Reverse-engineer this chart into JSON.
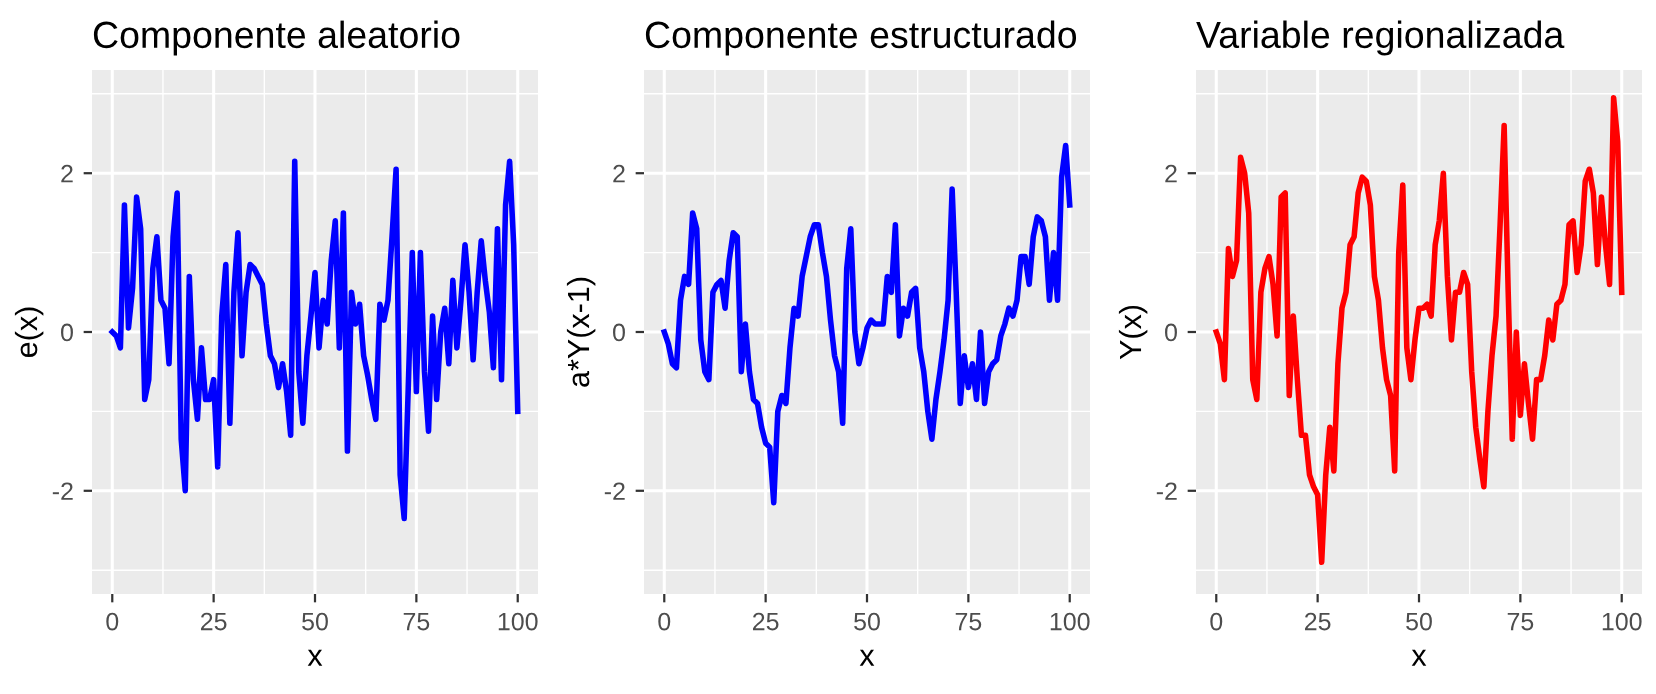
{
  "chart_data": [
    {
      "type": "line",
      "title": "Componente aleatorio",
      "xlabel": "x",
      "ylabel": "e(x)",
      "xlim": [
        -5,
        105
      ],
      "ylim": [
        -3.3,
        3.3
      ],
      "xticks": [
        0,
        25,
        50,
        75,
        100
      ],
      "yticks": [
        -2,
        0,
        2
      ],
      "grid": true,
      "x": [
        0,
        1,
        2,
        3,
        4,
        5,
        6,
        7,
        8,
        9,
        10,
        11,
        12,
        13,
        14,
        15,
        16,
        17,
        18,
        19,
        20,
        21,
        22,
        23,
        24,
        25,
        26,
        27,
        28,
        29,
        30,
        31,
        32,
        33,
        34,
        35,
        36,
        37,
        38,
        39,
        40,
        41,
        42,
        43,
        44,
        45,
        46,
        47,
        48,
        49,
        50,
        51,
        52,
        53,
        54,
        55,
        56,
        57,
        58,
        59,
        60,
        61,
        62,
        63,
        64,
        65,
        66,
        67,
        68,
        69,
        70,
        71,
        72,
        73,
        74,
        75,
        76,
        77,
        78,
        79,
        80,
        81,
        82,
        83,
        84,
        85,
        86,
        87,
        88,
        89,
        90,
        91,
        92,
        93,
        94,
        95,
        96,
        97,
        98,
        99,
        100
      ],
      "series": [
        {
          "color": "#0000ff",
          "values": [
            0,
            -0.05,
            -0.2,
            1.6,
            0.05,
            0.55,
            1.7,
            1.3,
            -0.85,
            -0.6,
            0.8,
            1.2,
            0.4,
            0.3,
            -0.4,
            1.2,
            1.75,
            -1.35,
            -2.0,
            0.7,
            -0.6,
            -1.1,
            -0.2,
            -0.85,
            -0.85,
            -0.6,
            -1.7,
            0.2,
            0.85,
            -1.15,
            0.5,
            1.25,
            -0.3,
            0.5,
            0.85,
            0.8,
            0.7,
            0.6,
            0.1,
            -0.3,
            -0.4,
            -0.7,
            -0.4,
            -0.75,
            -1.3,
            2.15,
            -0.5,
            -1.15,
            -0.3,
            0.2,
            0.75,
            -0.2,
            0.4,
            0.1,
            0.9,
            1.4,
            -0.2,
            1.5,
            -1.5,
            0.5,
            0.1,
            0.35,
            -0.3,
            -0.55,
            -0.85,
            -1.1,
            0.35,
            0.15,
            0.4,
            1.2,
            2.05,
            -1.8,
            -2.35,
            -0.7,
            1.0,
            -0.75,
            1.0,
            -0.5,
            -1.25,
            0.2,
            -0.85,
            0.0,
            0.3,
            -0.4,
            0.65,
            -0.2,
            0.4,
            1.1,
            0.5,
            -0.35,
            0.5,
            1.15,
            0.65,
            0.25,
            -0.45,
            1.3,
            -0.6,
            1.6,
            2.15,
            1.1,
            -1.0
          ]
        }
      ]
    },
    {
      "type": "line",
      "title": "Componente estructurado",
      "xlabel": "x",
      "ylabel": "a*Y(x-1)",
      "xlim": [
        -5,
        105
      ],
      "ylim": [
        -3.3,
        3.3
      ],
      "xticks": [
        0,
        25,
        50,
        75,
        100
      ],
      "yticks": [
        -2,
        0,
        2
      ],
      "grid": true,
      "x": [
        0,
        1,
        2,
        3,
        4,
        5,
        6,
        7,
        8,
        9,
        10,
        11,
        12,
        13,
        14,
        15,
        16,
        17,
        18,
        19,
        20,
        21,
        22,
        23,
        24,
        25,
        26,
        27,
        28,
        29,
        30,
        31,
        32,
        33,
        34,
        35,
        36,
        37,
        38,
        39,
        40,
        41,
        42,
        43,
        44,
        45,
        46,
        47,
        48,
        49,
        50,
        51,
        52,
        53,
        54,
        55,
        56,
        57,
        58,
        59,
        60,
        61,
        62,
        63,
        64,
        65,
        66,
        67,
        68,
        69,
        70,
        71,
        72,
        73,
        74,
        75,
        76,
        77,
        78,
        79,
        80,
        81,
        82,
        83,
        84,
        85,
        86,
        87,
        88,
        89,
        90,
        91,
        92,
        93,
        94,
        95,
        96,
        97,
        98,
        99,
        100
      ],
      "series": [
        {
          "color": "#0000ff",
          "values": [
            0,
            -0.15,
            -0.4,
            -0.45,
            0.4,
            0.7,
            0.6,
            1.5,
            1.3,
            -0.1,
            -0.5,
            -0.6,
            0.5,
            0.6,
            0.65,
            0.3,
            0.9,
            1.25,
            1.2,
            -0.5,
            0.1,
            -0.5,
            -0.85,
            -0.9,
            -1.2,
            -1.4,
            -1.45,
            -2.15,
            -1.0,
            -0.8,
            -0.9,
            -0.2,
            0.3,
            0.2,
            0.7,
            0.95,
            1.2,
            1.35,
            1.35,
            1.0,
            0.7,
            0.15,
            -0.3,
            -0.5,
            -1.15,
            0.8,
            1.3,
            0.0,
            -0.4,
            -0.2,
            0.05,
            0.15,
            0.1,
            0.1,
            0.1,
            0.7,
            0.5,
            1.35,
            -0.05,
            0.3,
            0.2,
            0.5,
            0.55,
            -0.2,
            -0.5,
            -1.0,
            -1.35,
            -0.85,
            -0.5,
            -0.1,
            0.4,
            1.8,
            0.5,
            -0.9,
            -0.3,
            -0.7,
            -0.4,
            -0.85,
            0.0,
            -0.9,
            -0.5,
            -0.4,
            -0.35,
            -0.05,
            0.1,
            0.3,
            0.2,
            0.4,
            0.95,
            0.95,
            0.6,
            1.2,
            1.45,
            1.4,
            1.2,
            0.4,
            1.0,
            0.4,
            1.95,
            2.35,
            1.6
          ]
        }
      ]
    },
    {
      "type": "line",
      "title": "Variable regionalizada",
      "xlabel": "x",
      "ylabel": "Y(x)",
      "xlim": [
        -5,
        105
      ],
      "ylim": [
        -3.3,
        3.3
      ],
      "xticks": [
        0,
        25,
        50,
        75,
        100
      ],
      "yticks": [
        -2,
        0,
        2
      ],
      "grid": true,
      "x": [
        0,
        1,
        2,
        3,
        4,
        5,
        6,
        7,
        8,
        9,
        10,
        11,
        12,
        13,
        14,
        15,
        16,
        17,
        18,
        19,
        20,
        21,
        22,
        23,
        24,
        25,
        26,
        27,
        28,
        29,
        30,
        31,
        32,
        33,
        34,
        35,
        36,
        37,
        38,
        39,
        40,
        41,
        42,
        43,
        44,
        45,
        46,
        47,
        48,
        49,
        50,
        51,
        52,
        53,
        54,
        55,
        56,
        57,
        58,
        59,
        60,
        61,
        62,
        63,
        64,
        65,
        66,
        67,
        68,
        69,
        70,
        71,
        72,
        73,
        74,
        75,
        76,
        77,
        78,
        79,
        80,
        81,
        82,
        83,
        84,
        85,
        86,
        87,
        88,
        89,
        90,
        91,
        92,
        93,
        94,
        95,
        96,
        97,
        98,
        99,
        100
      ],
      "series": [
        {
          "color": "#ff0000",
          "values": [
            0,
            -0.15,
            -0.6,
            1.05,
            0.7,
            0.9,
            2.2,
            2.0,
            1.5,
            -0.6,
            -0.85,
            0.5,
            0.8,
            0.95,
            0.6,
            -0.05,
            1.7,
            1.75,
            -0.8,
            0.2,
            -0.6,
            -1.3,
            -1.3,
            -1.8,
            -1.95,
            -2.05,
            -2.9,
            -1.8,
            -1.2,
            -1.75,
            -0.4,
            0.3,
            0.5,
            1.1,
            1.2,
            1.75,
            1.95,
            1.9,
            1.6,
            0.7,
            0.4,
            -0.2,
            -0.6,
            -0.8,
            -1.75,
            1.0,
            1.85,
            -0.2,
            -0.6,
            -0.1,
            0.3,
            0.3,
            0.35,
            0.2,
            1.1,
            1.4,
            2.0,
            0.7,
            -0.1,
            0.5,
            0.5,
            0.75,
            0.6,
            -0.5,
            -1.2,
            -1.6,
            -1.95,
            -1.0,
            -0.3,
            0.2,
            1.35,
            2.6,
            0.5,
            -1.35,
            0.0,
            -1.05,
            -0.4,
            -0.9,
            -1.35,
            -0.6,
            -0.6,
            -0.3,
            0.15,
            -0.1,
            0.35,
            0.4,
            0.6,
            1.35,
            1.4,
            0.75,
            1.1,
            1.9,
            2.05,
            1.75,
            0.85,
            1.7,
            1.1,
            0.6,
            2.95,
            2.4,
            0.5
          ]
        }
      ]
    }
  ]
}
